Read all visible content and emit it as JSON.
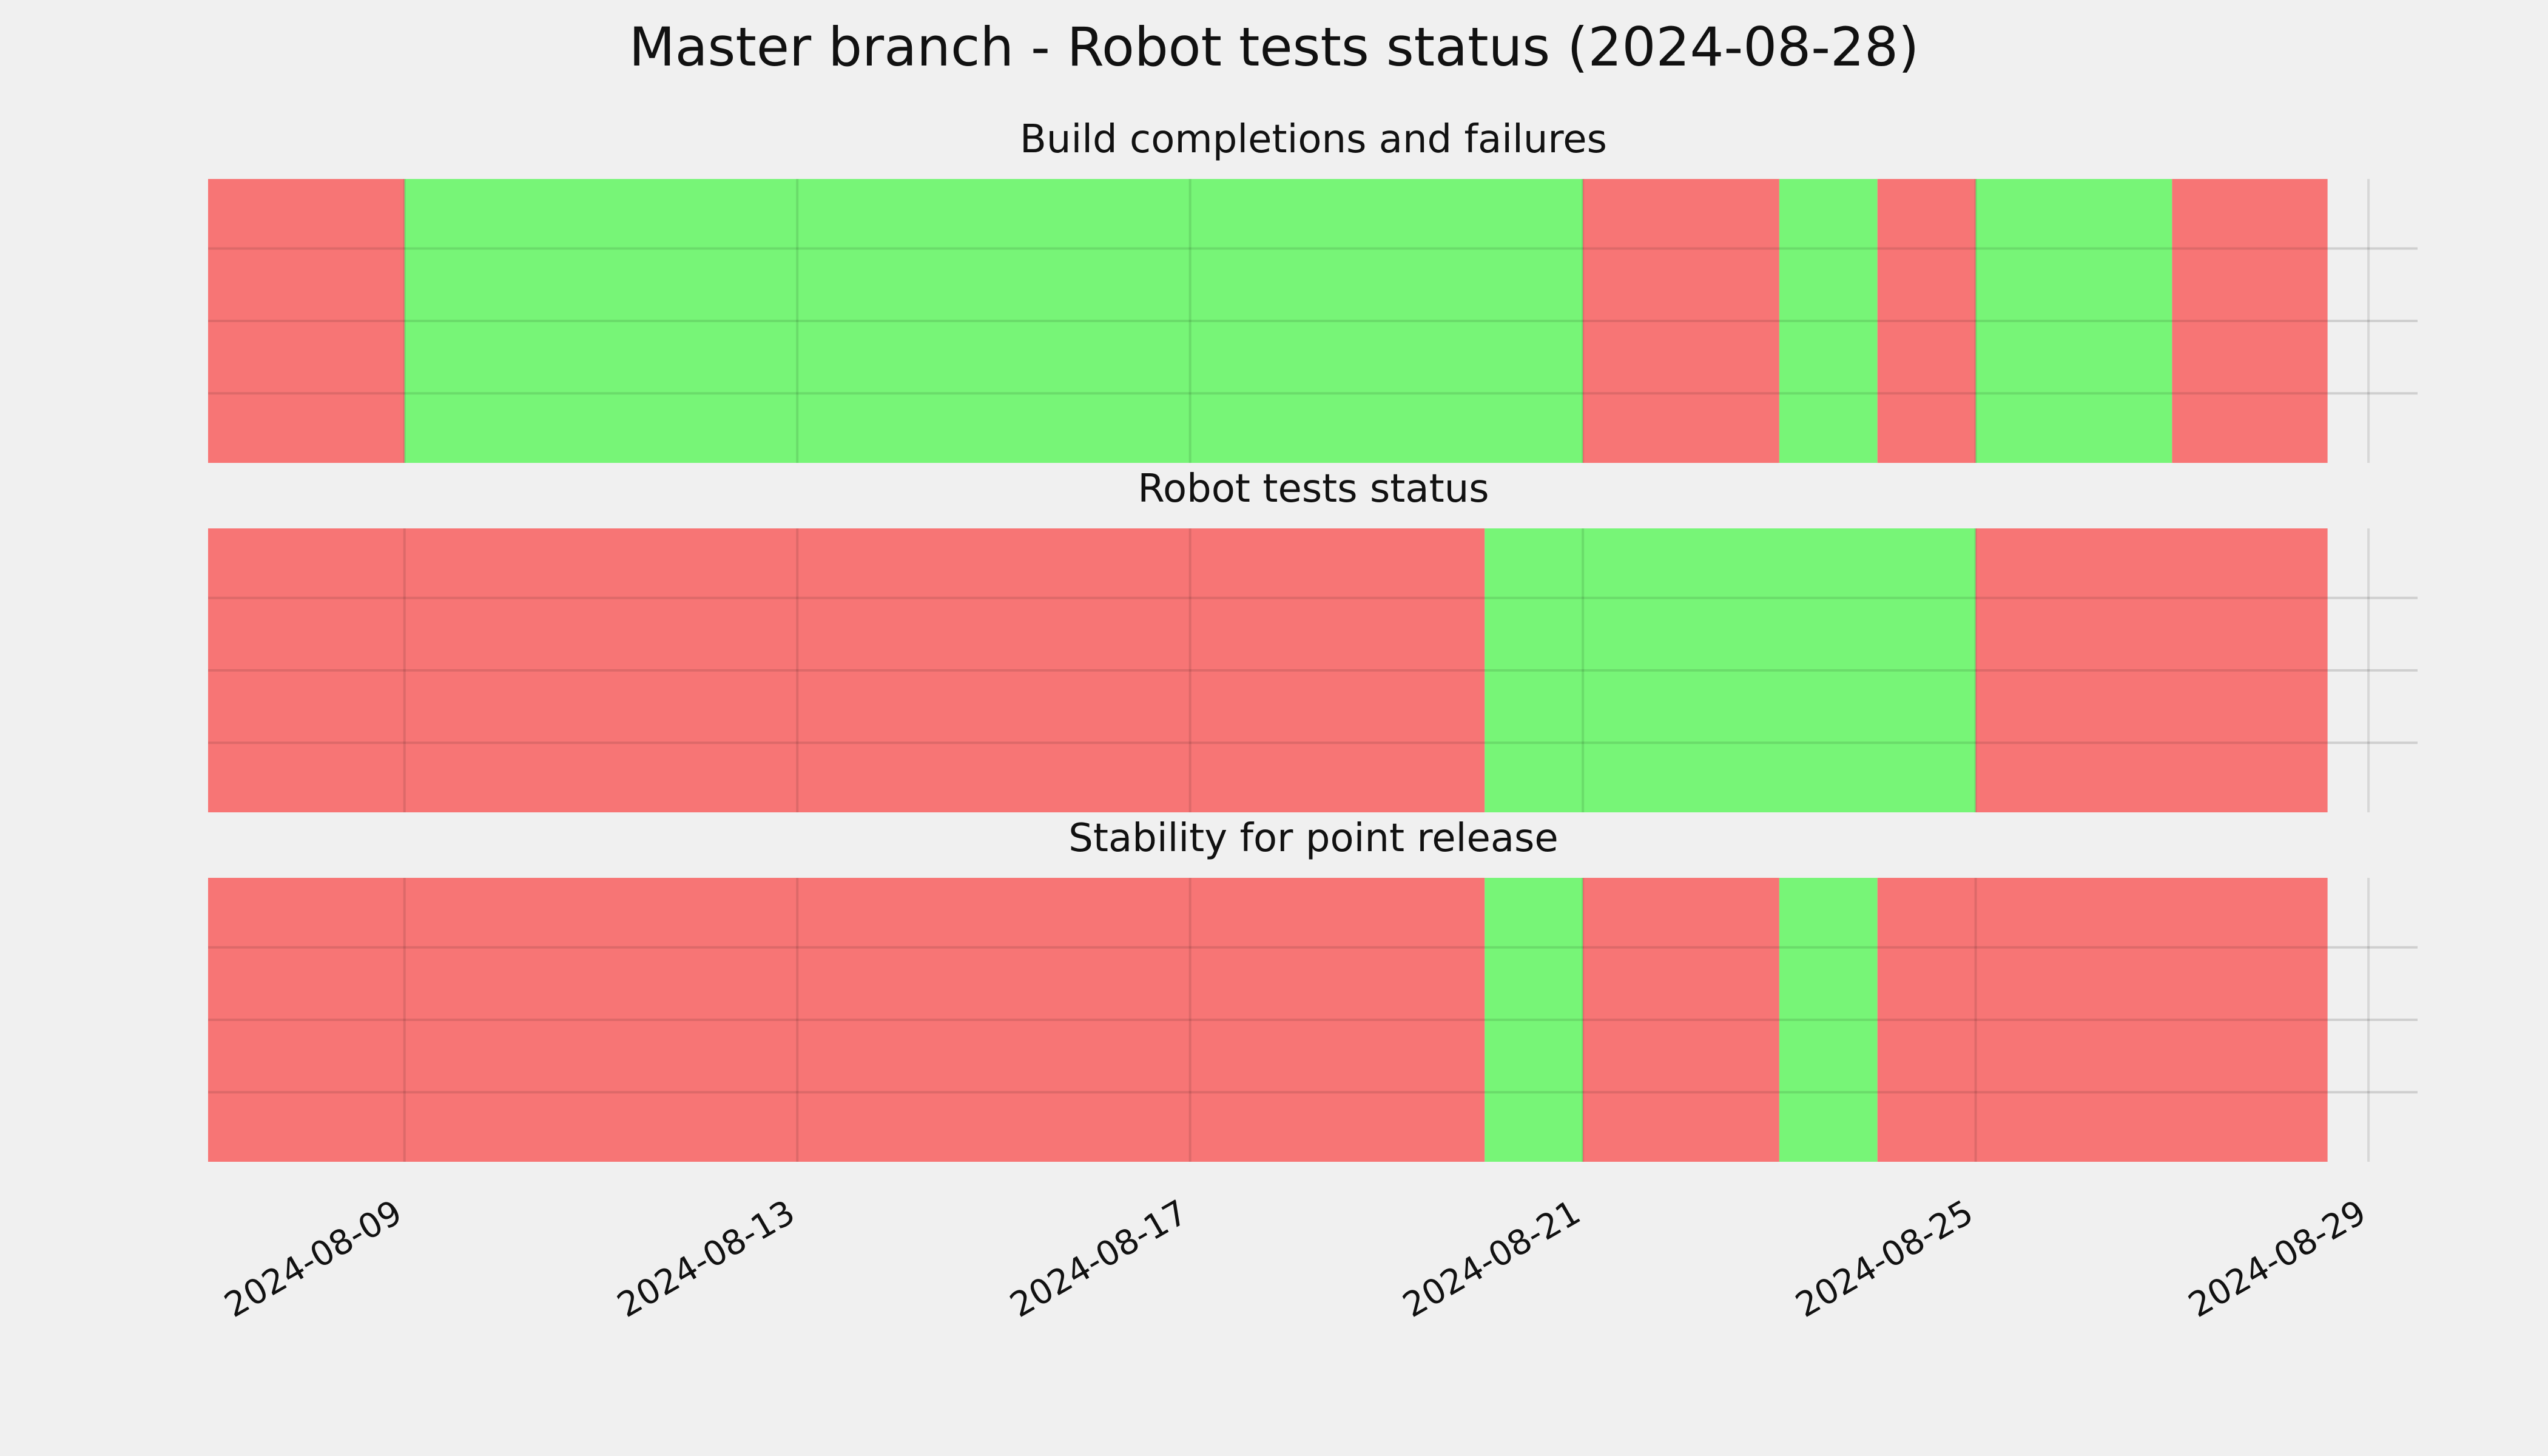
{
  "chart_data": {
    "type": "timeline",
    "title": "Master branch - Robot tests status (2024-08-28)",
    "x_ticks": [
      "2024-08-09",
      "2024-08-13",
      "2024-08-17",
      "2024-08-21",
      "2024-08-25",
      "2024-08-29"
    ],
    "xlim": [
      "2024-08-07T00:00",
      "2024-08-29T12:00"
    ],
    "grid": true,
    "colors": {
      "pass": "#77f577",
      "fail": "#f77575"
    },
    "panels": [
      {
        "title": "Build completions and failures",
        "segments": [
          {
            "start": "2024-08-07T00:00",
            "end": "2024-08-09T00:00",
            "status": "fail"
          },
          {
            "start": "2024-08-09T00:00",
            "end": "2024-08-21T00:00",
            "status": "pass"
          },
          {
            "start": "2024-08-21T00:00",
            "end": "2024-08-23T00:00",
            "status": "fail"
          },
          {
            "start": "2024-08-23T00:00",
            "end": "2024-08-24T00:00",
            "status": "pass"
          },
          {
            "start": "2024-08-24T00:00",
            "end": "2024-08-25T00:00",
            "status": "fail"
          },
          {
            "start": "2024-08-25T00:00",
            "end": "2024-08-27T00:00",
            "status": "pass"
          },
          {
            "start": "2024-08-27T00:00",
            "end": "2024-08-28T14:00",
            "status": "fail"
          }
        ]
      },
      {
        "title": "Robot tests status",
        "segments": [
          {
            "start": "2024-08-07T00:00",
            "end": "2024-08-20T00:00",
            "status": "fail"
          },
          {
            "start": "2024-08-20T00:00",
            "end": "2024-08-25T00:00",
            "status": "pass"
          },
          {
            "start": "2024-08-25T00:00",
            "end": "2024-08-28T14:00",
            "status": "fail"
          }
        ]
      },
      {
        "title": "Stability for point release",
        "segments": [
          {
            "start": "2024-08-07T00:00",
            "end": "2024-08-20T00:00",
            "status": "fail"
          },
          {
            "start": "2024-08-20T00:00",
            "end": "2024-08-21T00:00",
            "status": "pass"
          },
          {
            "start": "2024-08-21T00:00",
            "end": "2024-08-23T00:00",
            "status": "fail"
          },
          {
            "start": "2024-08-23T00:00",
            "end": "2024-08-24T00:00",
            "status": "pass"
          },
          {
            "start": "2024-08-24T00:00",
            "end": "2024-08-28T14:00",
            "status": "fail"
          }
        ]
      }
    ]
  }
}
